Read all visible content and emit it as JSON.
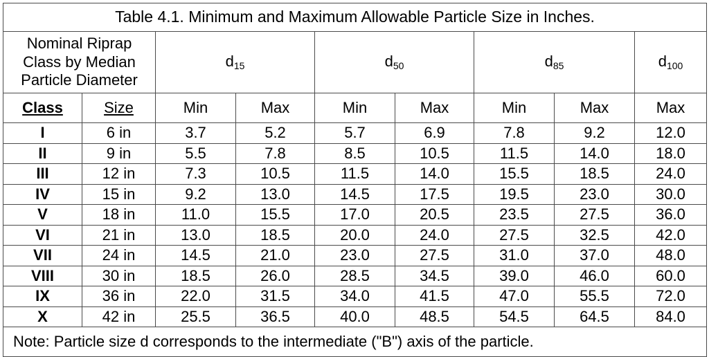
{
  "title": "Table 4.1.  Minimum and Maximum Allowable Particle Size in Inches.",
  "nominal_header": [
    "Nominal Riprap",
    "Class by Median",
    "Particle Diameter"
  ],
  "groups": [
    {
      "base": "d",
      "sub": "15"
    },
    {
      "base": "d",
      "sub": "50"
    },
    {
      "base": "d",
      "sub": "85"
    },
    {
      "base": "d",
      "sub": "100"
    }
  ],
  "subheaders": {
    "class": "Class",
    "size": "Size",
    "d15_min": "Min",
    "d15_max": "Max",
    "d50_min": "Min",
    "d50_max": "Max",
    "d85_min": "Min",
    "d85_max": "Max",
    "d100_max": "Max"
  },
  "rows": [
    {
      "class": "I",
      "size": "6 in",
      "d15_min": "3.7",
      "d15_max": "5.2",
      "d50_min": "5.7",
      "d50_max": "6.9",
      "d85_min": "7.8",
      "d85_max": "9.2",
      "d100_max": "12.0"
    },
    {
      "class": "II",
      "size": "9 in",
      "d15_min": "5.5",
      "d15_max": "7.8",
      "d50_min": "8.5",
      "d50_max": "10.5",
      "d85_min": "11.5",
      "d85_max": "14.0",
      "d100_max": "18.0"
    },
    {
      "class": "III",
      "size": "12 in",
      "d15_min": "7.3",
      "d15_max": "10.5",
      "d50_min": "11.5",
      "d50_max": "14.0",
      "d85_min": "15.5",
      "d85_max": "18.5",
      "d100_max": "24.0"
    },
    {
      "class": "IV",
      "size": "15 in",
      "d15_min": "9.2",
      "d15_max": "13.0",
      "d50_min": "14.5",
      "d50_max": "17.5",
      "d85_min": "19.5",
      "d85_max": "23.0",
      "d100_max": "30.0"
    },
    {
      "class": "V",
      "size": "18 in",
      "d15_min": "11.0",
      "d15_max": "15.5",
      "d50_min": "17.0",
      "d50_max": "20.5",
      "d85_min": "23.5",
      "d85_max": "27.5",
      "d100_max": "36.0"
    },
    {
      "class": "VI",
      "size": "21 in",
      "d15_min": "13.0",
      "d15_max": "18.5",
      "d50_min": "20.0",
      "d50_max": "24.0",
      "d85_min": "27.5",
      "d85_max": "32.5",
      "d100_max": "42.0"
    },
    {
      "class": "VII",
      "size": "24 in",
      "d15_min": "14.5",
      "d15_max": "21.0",
      "d50_min": "23.0",
      "d50_max": "27.5",
      "d85_min": "31.0",
      "d85_max": "37.0",
      "d100_max": "48.0"
    },
    {
      "class": "VIII",
      "size": "30 in",
      "d15_min": "18.5",
      "d15_max": "26.0",
      "d50_min": "28.5",
      "d50_max": "34.5",
      "d85_min": "39.0",
      "d85_max": "46.0",
      "d100_max": "60.0"
    },
    {
      "class": "IX",
      "size": "36 in",
      "d15_min": "22.0",
      "d15_max": "31.5",
      "d50_min": "34.0",
      "d50_max": "41.5",
      "d85_min": "47.0",
      "d85_max": "55.5",
      "d100_max": "72.0"
    },
    {
      "class": "X",
      "size": "42 in",
      "d15_min": "25.5",
      "d15_max": "36.5",
      "d50_min": "40.0",
      "d50_max": "48.5",
      "d85_min": "54.5",
      "d85_max": "64.5",
      "d100_max": "84.0"
    }
  ],
  "note": "Note:  Particle size d corresponds to the intermediate (\"B\") axis of the particle."
}
